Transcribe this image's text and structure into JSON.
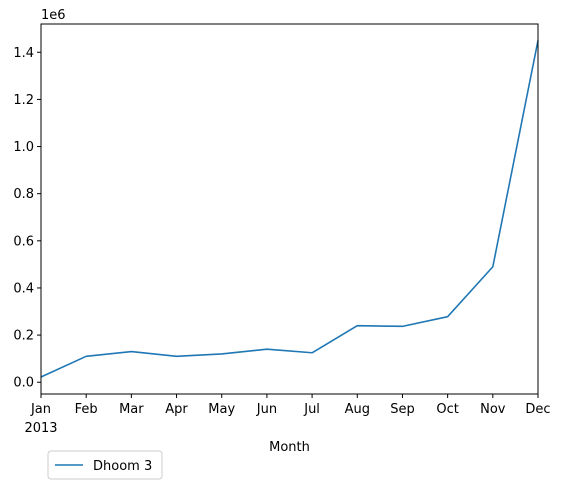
{
  "chart_data": {
    "type": "line",
    "x_label": "Month",
    "y_offset_label": "1e6",
    "categories": [
      "Jan",
      "Feb",
      "Mar",
      "Apr",
      "May",
      "Jun",
      "Jul",
      "Aug",
      "Sep",
      "Oct",
      "Nov",
      "Dec"
    ],
    "year_label": "2013",
    "y_ticks": [
      "0.0",
      "0.2",
      "0.4",
      "0.6",
      "0.8",
      "1.0",
      "1.2",
      "1.4"
    ],
    "y_tick_values": [
      0.0,
      0.2,
      0.4,
      0.6,
      0.8,
      1.0,
      1.2,
      1.4
    ],
    "ylim": [
      -0.05,
      1.52
    ],
    "series": [
      {
        "name": "Dhoom 3",
        "color": "#1f77b4",
        "values": [
          0.022,
          0.11,
          0.13,
          0.11,
          0.12,
          0.14,
          0.125,
          0.24,
          0.237,
          0.278,
          0.49,
          1.45
        ]
      }
    ],
    "legend_position": "bottom-left below axes",
    "grid": false
  }
}
